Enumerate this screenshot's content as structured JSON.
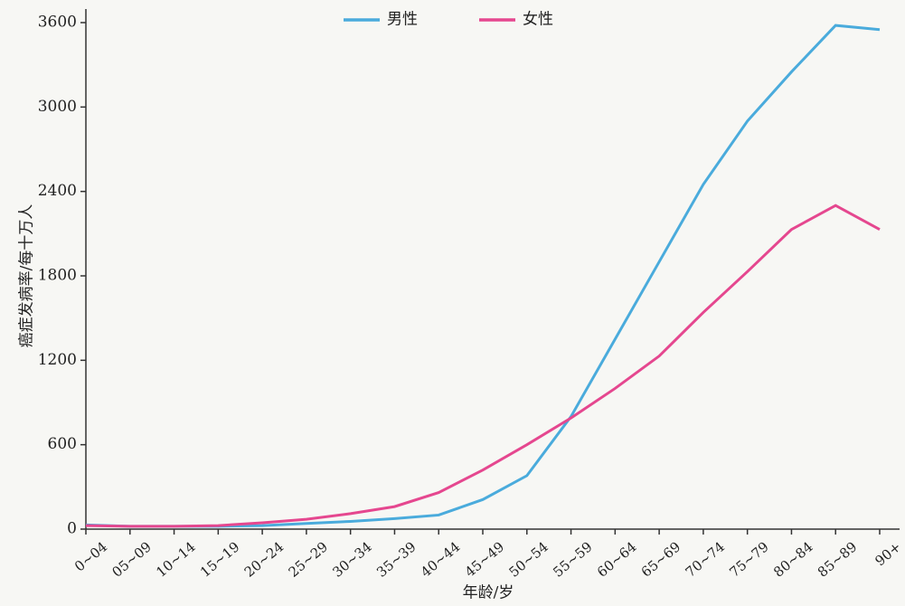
{
  "chart_data": {
    "type": "line",
    "y_label": "癌症发病率/每十万人",
    "x_label": "年龄/岁",
    "categories": [
      "0~04",
      "05~09",
      "10~14",
      "15~19",
      "20~24",
      "25~29",
      "30~34",
      "35~39",
      "40~44",
      "45~49",
      "50~54",
      "55~59",
      "60~64",
      "65~69",
      "70~74",
      "75~79",
      "80~84",
      "85~89",
      "90+"
    ],
    "series": [
      {
        "name": "男性",
        "color": "#4aabdc",
        "values": [
          30,
          20,
          20,
          20,
          25,
          40,
          55,
          75,
          100,
          210,
          380,
          800,
          1350,
          1900,
          2450,
          2900,
          3250,
          3580,
          3550
        ]
      },
      {
        "name": "女性",
        "color": "#e5478f",
        "values": [
          25,
          20,
          20,
          25,
          45,
          70,
          110,
          160,
          260,
          420,
          600,
          790,
          1000,
          1230,
          1540,
          1830,
          2130,
          2300,
          2130
        ]
      }
    ],
    "ylim": [
      0,
      3600
    ],
    "yticks": [
      0,
      600,
      1200,
      1800,
      2400,
      3000,
      3600
    ],
    "legend": "top"
  }
}
